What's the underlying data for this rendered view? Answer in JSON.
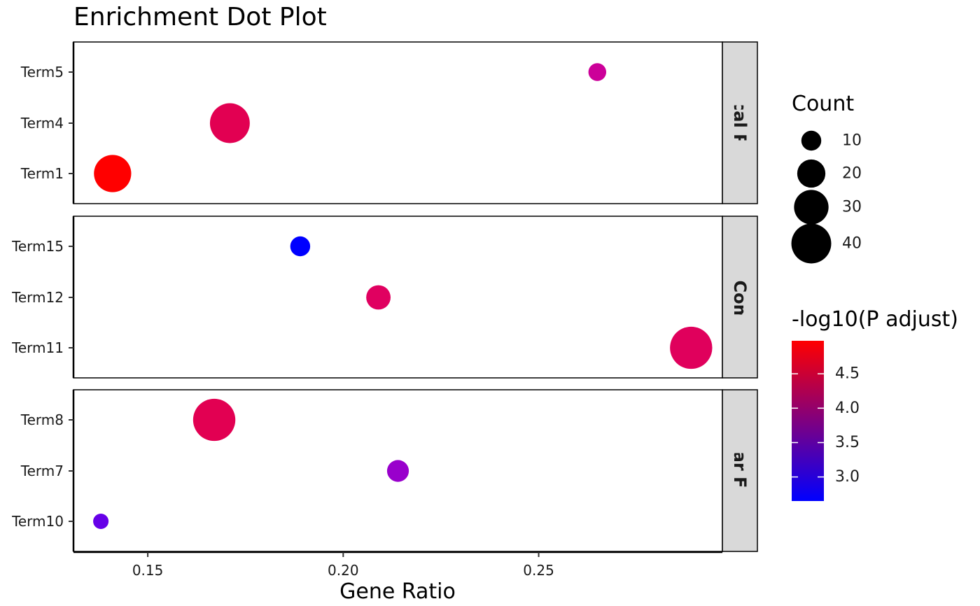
{
  "chart_data": {
    "type": "scatter",
    "title": "Enrichment Dot Plot",
    "xlabel": "Gene Ratio",
    "ylabel": "",
    "xlim": [
      0.131,
      0.297
    ],
    "x_ticks": [
      0.15,
      0.2,
      0.25
    ],
    "x_tick_labels": [
      "0.15",
      "0.20",
      "0.25"
    ],
    "grid": false,
    "legend_position": "right",
    "facets": [
      {
        "strip": "Biological Process",
        "strip_visible": "iological Proces",
        "terms": [
          "Term5",
          "Term4",
          "Term1"
        ],
        "points": [
          {
            "term": "Term5",
            "x": 0.265,
            "count": 8,
            "p_adjust_neg_log10": 3.9,
            "color": "#CC0099"
          },
          {
            "term": "Term4",
            "x": 0.171,
            "count": 40,
            "p_adjust_neg_log10": 4.35,
            "color": "#E20052"
          },
          {
            "term": "Term1",
            "x": 0.141,
            "count": 35,
            "p_adjust_neg_log10": 4.95,
            "color": "#FF0000"
          }
        ]
      },
      {
        "strip": "Cellular Component",
        "strip_visible": "llular Compone",
        "terms": [
          "Term15",
          "Term12",
          "Term11"
        ],
        "points": [
          {
            "term": "Term15",
            "x": 0.189,
            "count": 10,
            "p_adjust_neg_log10": 2.7,
            "color": "#0000FF"
          },
          {
            "term": "Term12",
            "x": 0.209,
            "count": 15,
            "p_adjust_neg_log10": 4.2,
            "color": "#E00060"
          },
          {
            "term": "Term11",
            "x": 0.289,
            "count": 45,
            "p_adjust_neg_log10": 4.3,
            "color": "#E0005C"
          }
        ]
      },
      {
        "strip": "Molecular Function",
        "strip_visible": "olecular Functio",
        "terms": [
          "Term8",
          "Term7",
          "Term10"
        ],
        "points": [
          {
            "term": "Term8",
            "x": 0.167,
            "count": 45,
            "p_adjust_neg_log10": 4.3,
            "color": "#E20052"
          },
          {
            "term": "Term7",
            "x": 0.214,
            "count": 12,
            "p_adjust_neg_log10": 3.3,
            "color": "#9900CC"
          },
          {
            "term": "Term10",
            "x": 0.138,
            "count": 6,
            "p_adjust_neg_log10": 3.0,
            "color": "#6600E8"
          }
        ]
      }
    ],
    "size_legend": {
      "title": "Count",
      "entries": [
        {
          "label": "10",
          "count": 10
        },
        {
          "label": "20",
          "count": 20
        },
        {
          "label": "30",
          "count": 30
        },
        {
          "label": "40",
          "count": 40
        }
      ]
    },
    "color_legend": {
      "title": "-log10(P adjust)",
      "range": [
        2.65,
        4.98
      ],
      "low_color": "#0000FF",
      "high_color": "#FF0000",
      "ticks": [
        {
          "label": "3.0",
          "value": 3.0
        },
        {
          "label": "3.5",
          "value": 3.5
        },
        {
          "label": "4.0",
          "value": 4.0
        },
        {
          "label": "4.5",
          "value": 4.5
        }
      ]
    }
  }
}
